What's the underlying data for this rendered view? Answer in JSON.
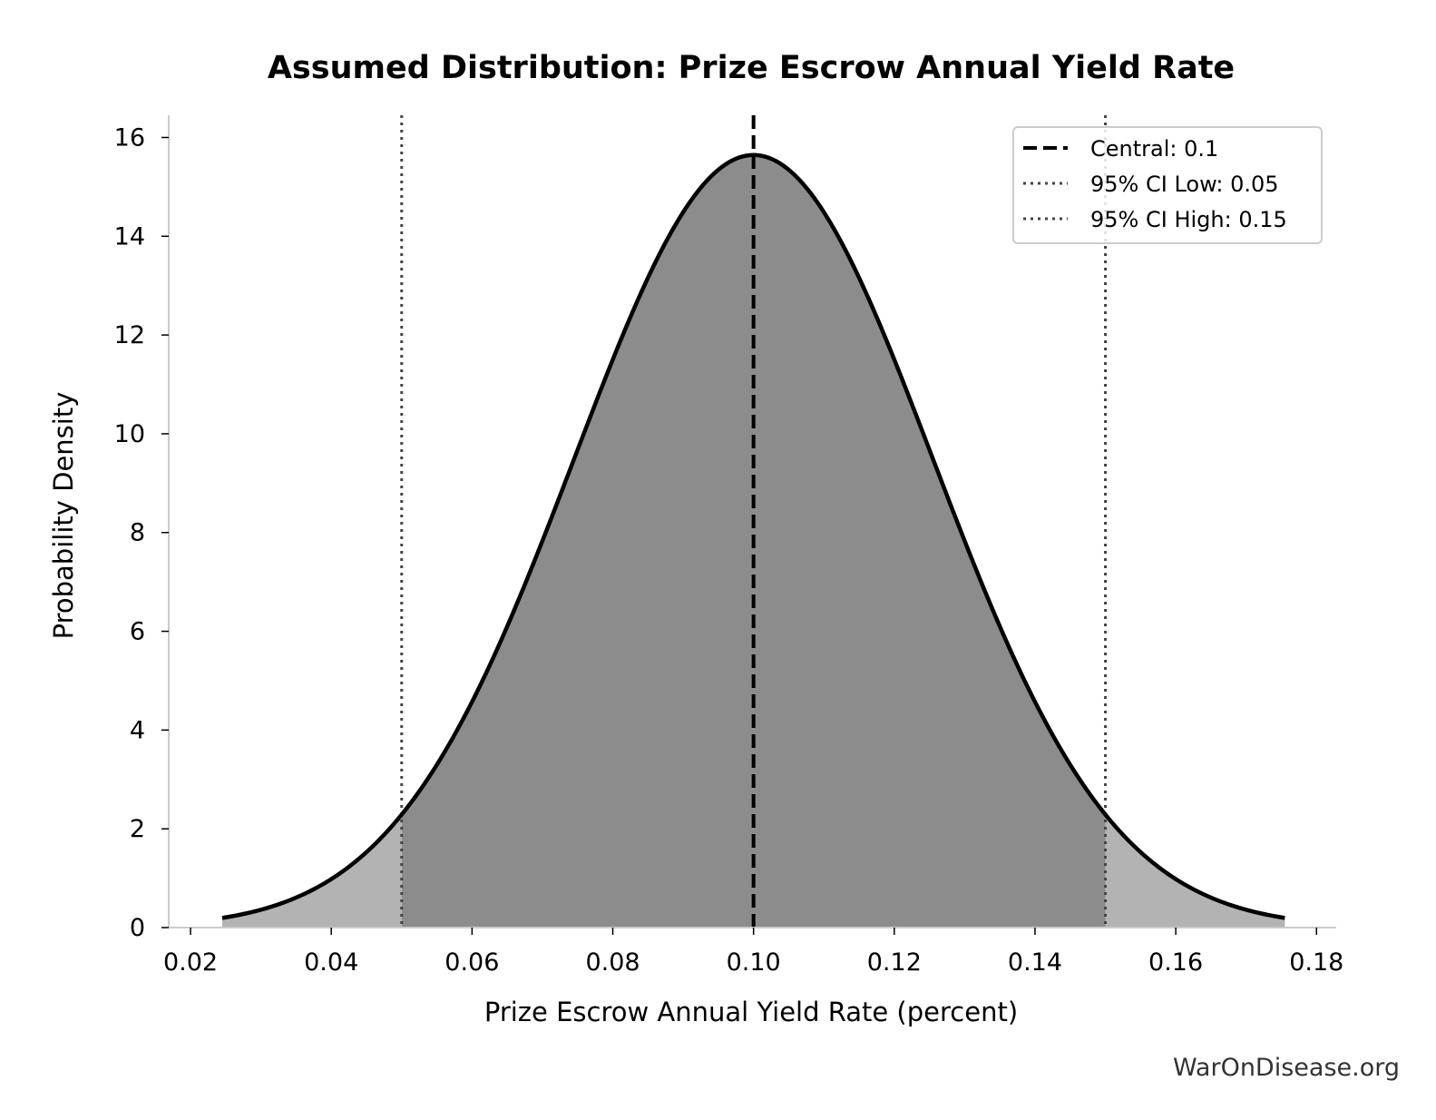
{
  "chart_data": {
    "type": "area",
    "title": "Assumed Distribution: Prize Escrow Annual Yield Rate",
    "xlabel": "Prize Escrow Annual Yield Rate (percent)",
    "ylabel": "Probability Density",
    "xlim": [
      0.0169,
      0.1828
    ],
    "ylim": [
      0,
      16.45
    ],
    "xticks": [
      {
        "value": 0.02,
        "label": "0.02"
      },
      {
        "value": 0.04,
        "label": "0.04"
      },
      {
        "value": 0.06,
        "label": "0.06"
      },
      {
        "value": 0.08,
        "label": "0.08"
      },
      {
        "value": 0.1,
        "label": "0.10"
      },
      {
        "value": 0.12,
        "label": "0.12"
      },
      {
        "value": 0.14,
        "label": "0.14"
      },
      {
        "value": 0.16,
        "label": "0.16"
      },
      {
        "value": 0.18,
        "label": "0.18"
      }
    ],
    "yticks": [
      {
        "value": 0,
        "label": "0"
      },
      {
        "value": 2,
        "label": "2"
      },
      {
        "value": 4,
        "label": "4"
      },
      {
        "value": 6,
        "label": "6"
      },
      {
        "value": 8,
        "label": "8"
      },
      {
        "value": 10,
        "label": "10"
      },
      {
        "value": 12,
        "label": "12"
      },
      {
        "value": 14,
        "label": "14"
      },
      {
        "value": 16,
        "label": "16"
      }
    ],
    "distribution": {
      "family": "normal",
      "mean": 0.1,
      "sd": 0.0255
    },
    "x_range": [
      0.0245,
      0.1755
    ],
    "series": [
      {
        "name": "Central: 0.1",
        "value": 0.1,
        "style": "dashed",
        "color": "#000000"
      },
      {
        "name": "95% CI Low: 0.05",
        "value": 0.05,
        "style": "dotted",
        "color": "#444444"
      },
      {
        "name": "95% CI High: 0.15",
        "value": 0.15,
        "style": "dotted",
        "color": "#444444"
      }
    ],
    "colors": {
      "inner_fill": "#8c8c8c",
      "tail_fill": "#b3b3b3",
      "curve": "#000000",
      "axis": "#cccccc"
    },
    "grid": false,
    "legend_position": "top-right",
    "source_text": "WarOnDisease.org"
  }
}
